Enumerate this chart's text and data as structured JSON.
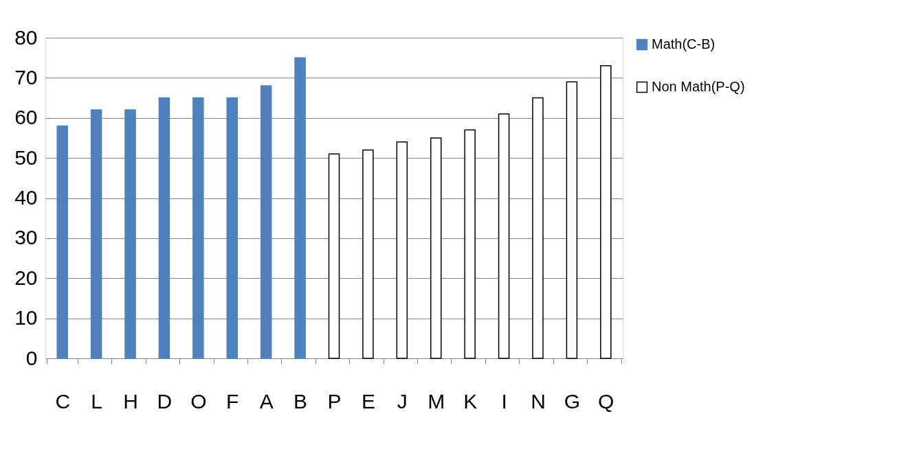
{
  "chart_data": {
    "type": "bar",
    "categories": [
      "C",
      "L",
      "H",
      "D",
      "O",
      "F",
      "A",
      "B",
      "P",
      "E",
      "J",
      "M",
      "K",
      "I",
      "N",
      "G",
      "Q"
    ],
    "series": [
      {
        "name": "Math(C-B)",
        "color": "#4f81bd",
        "values": [
          58,
          62,
          62,
          65,
          65,
          65,
          68,
          75,
          null,
          null,
          null,
          null,
          null,
          null,
          null,
          null,
          null
        ]
      },
      {
        "name": "Non Math(P-Q)",
        "color": "#ffffff",
        "values": [
          null,
          null,
          null,
          null,
          null,
          null,
          null,
          null,
          51,
          52,
          54,
          55,
          57,
          61,
          65,
          69,
          73
        ]
      }
    ],
    "ylim": [
      0,
      80
    ],
    "yticks": [
      0,
      10,
      20,
      30,
      40,
      50,
      60,
      70,
      80
    ],
    "grid": "y",
    "legend": "right"
  }
}
